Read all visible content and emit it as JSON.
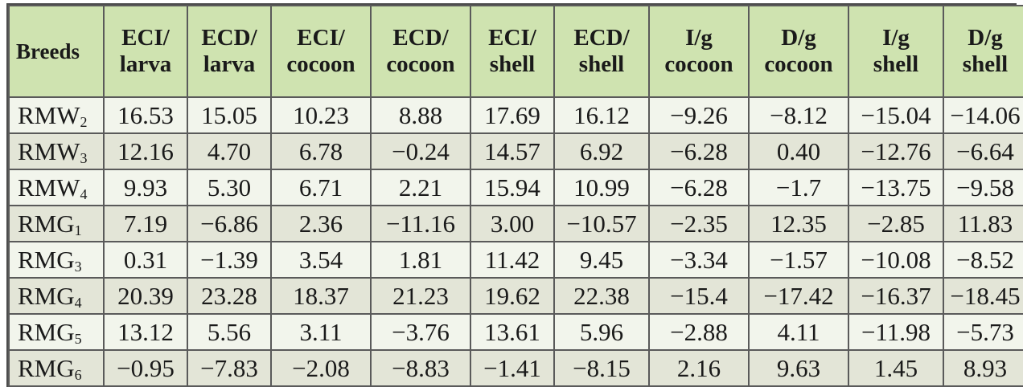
{
  "table": {
    "headers": [
      {
        "line1": "Breeds",
        "line2": ""
      },
      {
        "line1": "ECI/",
        "line2": "larva"
      },
      {
        "line1": "ECD/",
        "line2": "larva"
      },
      {
        "line1": "ECI/",
        "line2": "cocoon"
      },
      {
        "line1": "ECD/",
        "line2": "cocoon"
      },
      {
        "line1": "ECI/",
        "line2": "shell"
      },
      {
        "line1": "ECD/",
        "line2": "shell"
      },
      {
        "line1": "I/g",
        "line2": "cocoon"
      },
      {
        "line1": "D/g",
        "line2": "cocoon"
      },
      {
        "line1": "I/g",
        "line2": "shell"
      },
      {
        "line1": "D/g",
        "line2": "shell"
      }
    ],
    "rows": [
      {
        "breed": "RMW",
        "sub": "2",
        "values": [
          "16.53",
          "15.05",
          "10.23",
          "8.88",
          "17.69",
          "16.12",
          "−9.26",
          "−8.12",
          "−15.04",
          "−14.06"
        ]
      },
      {
        "breed": "RMW",
        "sub": "3",
        "values": [
          "12.16",
          "4.70",
          "6.78",
          "−0.24",
          "14.57",
          "6.92",
          "−6.28",
          "0.40",
          "−12.76",
          "−6.64"
        ]
      },
      {
        "breed": "RMW",
        "sub": "4",
        "values": [
          "9.93",
          "5.30",
          "6.71",
          "2.21",
          "15.94",
          "10.99",
          "−6.28",
          "−1.7",
          "−13.75",
          "−9.58"
        ]
      },
      {
        "breed": "RMG",
        "sub": "1",
        "values": [
          "7.19",
          "−6.86",
          "2.36",
          "−11.16",
          "3.00",
          "−10.57",
          "−2.35",
          "12.35",
          "−2.85",
          "11.83"
        ]
      },
      {
        "breed": "RMG",
        "sub": "3",
        "values": [
          "0.31",
          "−1.39",
          "3.54",
          "1.81",
          "11.42",
          "9.45",
          "−3.34",
          "−1.57",
          "−10.08",
          "−8.52"
        ]
      },
      {
        "breed": "RMG",
        "sub": "4",
        "values": [
          "20.39",
          "23.28",
          "18.37",
          "21.23",
          "19.62",
          "22.38",
          "−15.4",
          "−17.42",
          "−16.37",
          "−18.45"
        ]
      },
      {
        "breed": "RMG",
        "sub": "5",
        "values": [
          "13.12",
          "5.56",
          "3.11",
          "−3.76",
          "13.61",
          "5.96",
          "−2.88",
          "4.11",
          "−11.98",
          "−5.73"
        ]
      },
      {
        "breed": "RMG",
        "sub": "6",
        "values": [
          "−0.95",
          "−7.83",
          "−2.08",
          "−8.83",
          "−1.41",
          "−8.15",
          "2.16",
          "9.63",
          "1.45",
          "8.93"
        ]
      }
    ]
  },
  "colors": {
    "header_bg": "#cfe3b0",
    "row_light": "#f2f5ec",
    "row_dark": "#e3e5d7",
    "border": "#5a5a5a"
  }
}
